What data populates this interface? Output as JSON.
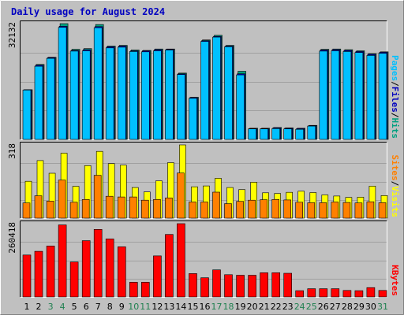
{
  "chart_data": {
    "type": "bar",
    "title": "Daily usage for August 2024",
    "days": [
      "1",
      "2",
      "3",
      "4",
      "5",
      "6",
      "7",
      "8",
      "9",
      "10",
      "11",
      "12",
      "13",
      "14",
      "15",
      "16",
      "17",
      "18",
      "19",
      "20",
      "21",
      "22",
      "23",
      "24",
      "25",
      "26",
      "27",
      "28",
      "29",
      "30",
      "31"
    ],
    "weekend_days": [
      "3",
      "4",
      "10",
      "11",
      "17",
      "18",
      "24",
      "25",
      "31"
    ],
    "colors": {
      "background": "#c0c0c0",
      "title": "#0000c0",
      "weekday_label": "#000000",
      "weekend_label": "#208050",
      "hits": "#00a080",
      "files": "#0000c0",
      "pages": "#00c0ff",
      "visits": "#ffff00",
      "sites": "#ff8000",
      "kbytes": "#ff0000",
      "gridline": "#a0a0a0"
    },
    "panels": [
      {
        "ymax_label": "32132",
        "ymax": 32132,
        "legend": [
          {
            "name": "Pages",
            "color": "#00c0ff"
          },
          {
            "sep": "/"
          },
          {
            "name": "Files",
            "color": "#0000c0"
          },
          {
            "sep": "/"
          },
          {
            "name": "Hits",
            "color": "#00a080"
          }
        ],
        "series": [
          {
            "name": "Hits",
            "color": "#00a080",
            "values": [
              13800,
              20800,
              22800,
              32132,
              25000,
              25200,
              31900,
              25900,
              26100,
              24800,
              24700,
              25100,
              25100,
              18400,
              11700,
              27600,
              28900,
              26100,
              18900,
              3100,
              3100,
              3300,
              3200,
              3100,
              3900,
              25000,
              25100,
              24900,
              24600,
              23800,
              24300
            ]
          },
          {
            "name": "Files",
            "color": "#0000c0",
            "values": [
              13800,
              20600,
              22700,
              31400,
              24700,
              24900,
              31300,
              25700,
              25900,
              24600,
              24600,
              24900,
              25000,
              18200,
              11600,
              27400,
              28600,
              25900,
              18200,
              3000,
              3000,
              3200,
              3100,
              3000,
              3800,
              24800,
              24900,
              24700,
              24400,
              23600,
              24200
            ]
          },
          {
            "name": "Pages",
            "color": "#00c0ff",
            "values": [
              13700,
              20300,
              22500,
              31100,
              24500,
              24600,
              31000,
              25400,
              25600,
              24400,
              24300,
              24600,
              24800,
              18000,
              11400,
              27200,
              28400,
              25700,
              17900,
              2900,
              2900,
              3000,
              2900,
              2800,
              3700,
              24500,
              24600,
              24400,
              24100,
              23300,
              23900
            ]
          }
        ]
      },
      {
        "ymax_label": "318",
        "ymax": 318,
        "legend": [
          {
            "name": "Sites",
            "color": "#ff8000"
          },
          {
            "sep": "/"
          },
          {
            "name": "Visits",
            "color": "#ffff00"
          }
        ],
        "series": [
          {
            "name": "Visits",
            "color": "#ffff00",
            "values": [
              160,
              250,
              195,
              282,
              138,
              228,
              290,
              237,
              230,
              133,
              114,
              162,
              241,
              318,
              136,
              140,
              173,
              133,
              124,
              156,
              110,
              107,
              112,
              117,
              111,
              101,
              96,
              90,
              91,
              139,
              98
            ]
          },
          {
            "name": "Sites",
            "color": "#ff8000",
            "values": [
              66,
              97,
              74,
              165,
              69,
              81,
              186,
              95,
              92,
              92,
              78,
              81,
              88,
              196,
              70,
              70,
              113,
              63,
              73,
              78,
              80,
              81,
              79,
              69,
              67,
              67,
              70,
              68,
              66,
              71,
              67
            ]
          }
        ]
      },
      {
        "ymax_label": "260418",
        "ymax": 260418,
        "legend": [
          {
            "name": "KBytes",
            "color": "#ff0000"
          }
        ],
        "series": [
          {
            "name": "KBytes",
            "color": "#ff0000",
            "values": [
              149000,
              162000,
              181000,
              256000,
              124000,
              200000,
              240000,
              206000,
              178000,
              52000,
              52000,
              146000,
              222000,
              260418,
              83000,
              68000,
              96000,
              79000,
              77000,
              77000,
              86000,
              86000,
              84000,
              22000,
              29000,
              29000,
              29000,
              23000,
              22000,
              33000,
              23000
            ]
          }
        ]
      }
    ]
  }
}
